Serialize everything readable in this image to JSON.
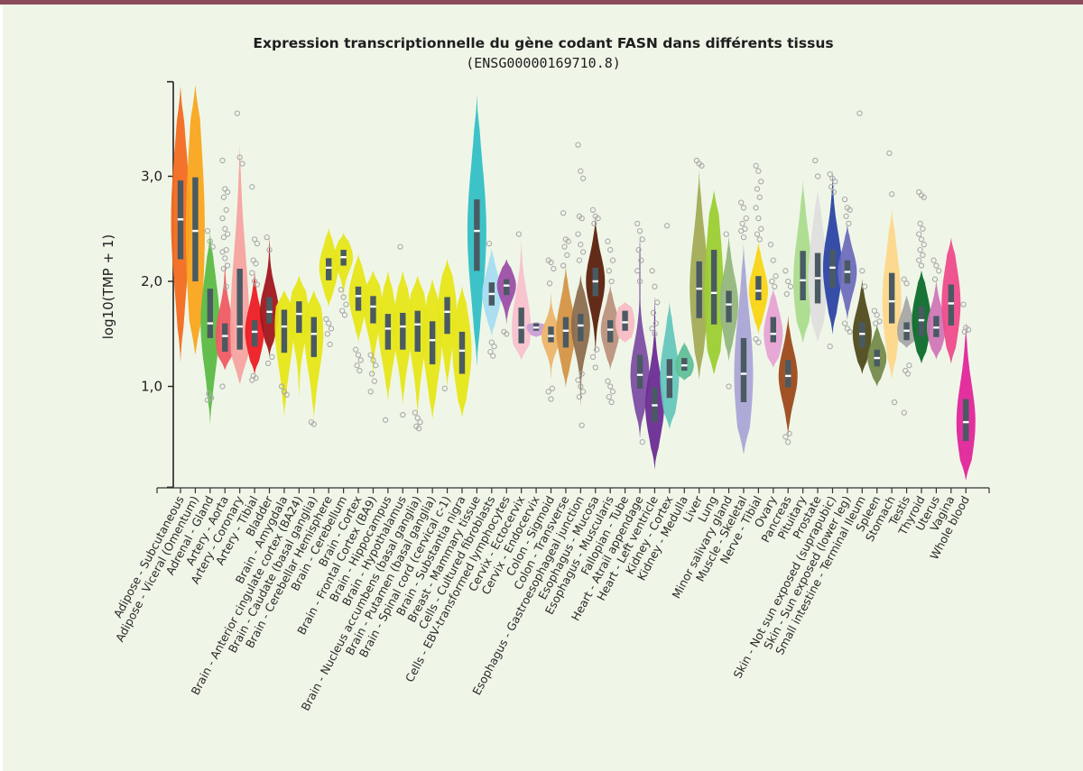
{
  "chart_data": {
    "type": "violin",
    "title": "Expression transcriptionnelle du gène codant FASN dans différents tissus",
    "subtitle": "(ENSG00000169710.8)",
    "xlabel": "",
    "ylabel": "log10(TMP + 1)",
    "ylim": [
      0.04,
      3.9
    ],
    "yticks": [
      1.0,
      2.0,
      3.0
    ],
    "ytick_labels": [
      "1,0",
      "2,0",
      "3,0"
    ],
    "grid": false,
    "legend": "none",
    "categories": [
      "Adipose - Subcutaneous",
      "Adipose - Viceral (Omentum)",
      "Adrenal - Gland",
      "Artery - Aorta",
      "Artery - Coronary",
      "Artery - Tibial",
      "Bladder",
      "Brain - Amygdala",
      "Brain - Anterior cingulate cortex (BA24)",
      "Brain - Caudate (basal ganglia)",
      "Brain - Cerebellar Hemisphere",
      "Brain - Cerebellum",
      "Brain - Cortex",
      "Brain - Frontal Cortex (BA9)",
      "Brain - Hippocampus",
      "Brain - Hypothalamus",
      "Brain - Nucleus accumbens (basal ganglia)",
      "Brain - Putamen (basal ganglia)",
      "Brain - Spinal cord (cervical c-1)",
      "Brain - Substantia nigra",
      "Breast - Mammary tissue",
      "Cells - Cultured fibroblasts",
      "Cells - EBV-transformed lymphocytes",
      "Cervix - Ectocervix",
      "Cervix - Endocervix",
      "Colon - Sigmoid",
      "Colon - Transverse",
      "Esophagus - Gastroesophageal junction",
      "Esophagus - Mucosa",
      "Esophagus - Muscularis",
      "Fallopian - Tube",
      "Heart - Atrail appendage",
      "Heart - Left ventricle",
      "Kidney - Cortex",
      "Kidney - Medulla",
      "Liver",
      "Lung",
      "Minor salivary gland",
      "Muscle - Skeletal",
      "Nerve - Tibial",
      "Ovary",
      "Pancreas",
      "Pituitary",
      "Prostate",
      "Skin - Not sun exposed (suprapubic)",
      "Skin - Sun exposed (lower leg)",
      "Small intestine - Terminal Ileum",
      "Spleen",
      "Stomach",
      "Testis",
      "Thyroid",
      "Uterus",
      "Vagina",
      "Whole blood"
    ],
    "series": [
      {
        "name": "Adipose - Subcutaneous",
        "color": "#f26b21",
        "median": 2.59,
        "q1": 2.21,
        "q3": 2.96,
        "min": 1.24,
        "max": 3.85
      },
      {
        "name": "Adipose - Viceral (Omentum)",
        "color": "#f8a51d",
        "median": 2.48,
        "q1": 2.0,
        "q3": 2.99,
        "min": 1.31,
        "max": 3.86
      },
      {
        "name": "Adrenal - Gland",
        "color": "#5bbb44",
        "median": 1.6,
        "q1": 1.46,
        "q3": 1.93,
        "min": 0.64,
        "max": 2.46
      },
      {
        "name": "Artery - Aorta",
        "color": "#ef5b64",
        "median": 1.48,
        "q1": 1.33,
        "q3": 1.6,
        "min": 1.16,
        "max": 2.19
      },
      {
        "name": "Artery - Coronary",
        "color": "#f5a3a0",
        "median": 1.57,
        "q1": 1.35,
        "q3": 2.12,
        "min": 1.03,
        "max": 3.3
      },
      {
        "name": "Artery - Tibial",
        "color": "#ec1c24",
        "median": 1.52,
        "q1": 1.38,
        "q3": 1.63,
        "min": 1.12,
        "max": 2.1
      },
      {
        "name": "Bladder",
        "color": "#a0171e",
        "median": 1.71,
        "q1": 1.6,
        "q3": 1.85,
        "min": 1.29,
        "max": 2.41
      },
      {
        "name": "Brain - Amygdala",
        "color": "#e6e619",
        "median": 1.57,
        "q1": 1.32,
        "q3": 1.73,
        "min": 0.71,
        "max": 1.91
      },
      {
        "name": "Brain - Anterior cingulate cortex (BA24)",
        "color": "#e6e619",
        "median": 1.69,
        "q1": 1.51,
        "q3": 1.81,
        "min": 0.9,
        "max": 2.05
      },
      {
        "name": "Brain - Caudate (basal ganglia)",
        "color": "#e6e619",
        "median": 1.5,
        "q1": 1.28,
        "q3": 1.66,
        "min": 0.69,
        "max": 1.91
      },
      {
        "name": "Brain - Cerebellar Hemisphere",
        "color": "#e6e619",
        "median": 2.13,
        "q1": 2.01,
        "q3": 2.22,
        "min": 1.76,
        "max": 2.51
      },
      {
        "name": "Brain - Cerebellum",
        "color": "#e6e619",
        "median": 2.23,
        "q1": 2.15,
        "q3": 2.3,
        "min": 1.85,
        "max": 2.46
      },
      {
        "name": "Brain - Cortex",
        "color": "#e6e619",
        "median": 1.86,
        "q1": 1.72,
        "q3": 1.95,
        "min": 1.42,
        "max": 2.26
      },
      {
        "name": "Brain - Frontal Cortex (BA9)",
        "color": "#e6e619",
        "median": 1.76,
        "q1": 1.6,
        "q3": 1.86,
        "min": 1.07,
        "max": 2.1
      },
      {
        "name": "Brain - Hippocampus",
        "color": "#e6e619",
        "median": 1.55,
        "q1": 1.35,
        "q3": 1.69,
        "min": 0.86,
        "max": 2.1
      },
      {
        "name": "Brain - Hypothalamus",
        "color": "#e6e619",
        "median": 1.57,
        "q1": 1.35,
        "q3": 1.7,
        "min": 0.82,
        "max": 2.1
      },
      {
        "name": "Brain - Nucleus accumbens (basal ganglia)",
        "color": "#e6e619",
        "median": 1.59,
        "q1": 1.33,
        "q3": 1.72,
        "min": 0.73,
        "max": 2.05
      },
      {
        "name": "Brain - Putamen (basal ganglia)",
        "color": "#e6e619",
        "median": 1.44,
        "q1": 1.21,
        "q3": 1.62,
        "min": 0.69,
        "max": 2.02
      },
      {
        "name": "Brain - Spinal cord (cervical c-1)",
        "color": "#e6e619",
        "median": 1.71,
        "q1": 1.5,
        "q3": 1.85,
        "min": 1.0,
        "max": 2.21
      },
      {
        "name": "Brain - Substantia nigra",
        "color": "#e6e619",
        "median": 1.34,
        "q1": 1.12,
        "q3": 1.52,
        "min": 0.71,
        "max": 1.95
      },
      {
        "name": "Breast - Mammary tissue",
        "color": "#33bfc5",
        "median": 2.48,
        "q1": 2.1,
        "q3": 2.78,
        "min": 1.2,
        "max": 3.76
      },
      {
        "name": "Cells - Cultured fibroblasts",
        "color": "#a6dcf1",
        "median": 1.88,
        "q1": 1.77,
        "q3": 1.99,
        "min": 1.48,
        "max": 2.32
      },
      {
        "name": "Cells - EBV-transformed lymphocytes",
        "color": "#9c4fa8",
        "median": 1.96,
        "q1": 1.87,
        "q3": 2.02,
        "min": 1.59,
        "max": 2.21
      },
      {
        "name": "Cervix - Ectocervix",
        "color": "#f7c1cf",
        "median": 1.56,
        "q1": 1.41,
        "q3": 1.75,
        "min": 1.26,
        "max": 2.4
      },
      {
        "name": "Cervix - Endocervix",
        "color": "#c99ed6",
        "median": 1.56,
        "q1": 1.53,
        "q3": 1.6,
        "min": 1.47,
        "max": 1.61
      },
      {
        "name": "Colon - Sigmoid",
        "color": "#ecb46a",
        "median": 1.48,
        "q1": 1.42,
        "q3": 1.57,
        "min": 1.07,
        "max": 1.89
      },
      {
        "name": "Colon - Transverse",
        "color": "#d49445",
        "median": 1.53,
        "q1": 1.37,
        "q3": 1.66,
        "min": 0.99,
        "max": 2.15
      },
      {
        "name": "Esophagus - Gastroesophageal junction",
        "color": "#8c6d4f",
        "median": 1.58,
        "q1": 1.43,
        "q3": 1.69,
        "min": 0.82,
        "max": 2.06
      },
      {
        "name": "Esophagus - Mucosa",
        "color": "#5a210e",
        "median": 2.0,
        "q1": 1.86,
        "q3": 2.13,
        "min": 1.29,
        "max": 2.62
      },
      {
        "name": "Esophagus - Muscularis",
        "color": "#bb927d",
        "median": 1.54,
        "q1": 1.42,
        "q3": 1.63,
        "min": 1.16,
        "max": 1.97
      },
      {
        "name": "Fallopian - Tube",
        "color": "#f8bcc4",
        "median": 1.61,
        "q1": 1.53,
        "q3": 1.72,
        "min": 1.42,
        "max": 1.8
      },
      {
        "name": "Heart - Atrail appendage",
        "color": "#7d4ea3",
        "median": 1.11,
        "q1": 0.98,
        "q3": 1.3,
        "min": 0.51,
        "max": 2.45
      },
      {
        "name": "Heart - Left ventricle",
        "color": "#6a2c93",
        "median": 0.82,
        "q1": 0.66,
        "q3": 0.99,
        "min": 0.21,
        "max": 1.85
      },
      {
        "name": "Kidney - Cortex",
        "color": "#66c7bd",
        "median": 1.09,
        "q1": 0.89,
        "q3": 1.26,
        "min": 0.6,
        "max": 1.8
      },
      {
        "name": "Kidney - Medulla",
        "color": "#5fbf99",
        "median": 1.2,
        "q1": 1.15,
        "q3": 1.27,
        "min": 1.06,
        "max": 1.42
      },
      {
        "name": "Liver",
        "color": "#a3ac57",
        "median": 1.93,
        "q1": 1.65,
        "q3": 2.19,
        "min": 1.07,
        "max": 3.06
      },
      {
        "name": "Lung",
        "color": "#9bcd32",
        "median": 1.89,
        "q1": 1.59,
        "q3": 2.3,
        "min": 1.12,
        "max": 2.86
      },
      {
        "name": "Minor salivary gland",
        "color": "#93b77d",
        "median": 1.78,
        "q1": 1.61,
        "q3": 1.91,
        "min": 1.24,
        "max": 2.45
      },
      {
        "name": "Muscle - Skeletal",
        "color": "#aaa5d6",
        "median": 1.12,
        "q1": 0.85,
        "q3": 1.46,
        "min": 0.36,
        "max": 2.36
      },
      {
        "name": "Nerve - Tibial",
        "color": "#f9d414",
        "median": 1.91,
        "q1": 1.82,
        "q3": 2.05,
        "min": 1.5,
        "max": 2.38
      },
      {
        "name": "Ovary",
        "color": "#e6a3d4",
        "median": 1.5,
        "q1": 1.42,
        "q3": 1.66,
        "min": 1.18,
        "max": 1.93
      },
      {
        "name": "Pancreas",
        "color": "#9c4a1c",
        "median": 1.1,
        "q1": 0.99,
        "q3": 1.25,
        "min": 0.52,
        "max": 1.67
      },
      {
        "name": "Pituitary",
        "color": "#abdc8e",
        "median": 2.01,
        "q1": 1.82,
        "q3": 2.29,
        "min": 1.42,
        "max": 2.96
      },
      {
        "name": "Prostate",
        "color": "#dedede",
        "median": 2.03,
        "q1": 1.79,
        "q3": 2.27,
        "min": 1.42,
        "max": 2.87
      },
      {
        "name": "Skin - Not sun exposed (suprapubic)",
        "color": "#2c44a5",
        "median": 2.13,
        "q1": 1.94,
        "q3": 2.3,
        "min": 1.5,
        "max": 3.05
      },
      {
        "name": "Skin - Sun exposed (lower leg)",
        "color": "#6d6dbd",
        "median": 2.09,
        "q1": 1.98,
        "q3": 2.2,
        "min": 1.63,
        "max": 2.55
      },
      {
        "name": "Small intestine - Terminal Ileum",
        "color": "#4f4b1e",
        "median": 1.5,
        "q1": 1.37,
        "q3": 1.61,
        "min": 1.12,
        "max": 2.02
      },
      {
        "name": "Spleen",
        "color": "#758a4b",
        "median": 1.27,
        "q1": 1.19,
        "q3": 1.35,
        "min": 1.0,
        "max": 1.59
      },
      {
        "name": "Stomach",
        "color": "#fdd78a",
        "median": 1.81,
        "q1": 1.6,
        "q3": 2.08,
        "min": 1.07,
        "max": 2.69
      },
      {
        "name": "Testis",
        "color": "#a6a6a6",
        "median": 1.53,
        "q1": 1.44,
        "q3": 1.61,
        "min": 1.37,
        "max": 1.87
      },
      {
        "name": "Thyroid",
        "color": "#0d6b2c",
        "median": 1.63,
        "q1": 1.48,
        "q3": 1.76,
        "min": 1.22,
        "max": 2.1
      },
      {
        "name": "Uterus",
        "color": "#cf77b7",
        "median": 1.56,
        "q1": 1.47,
        "q3": 1.67,
        "min": 1.26,
        "max": 2.02
      },
      {
        "name": "Vagina",
        "color": "#ee4c8c",
        "median": 1.79,
        "q1": 1.58,
        "q3": 1.97,
        "min": 1.22,
        "max": 2.41
      },
      {
        "name": "Whole blood",
        "color": "#e2259b",
        "median": 0.66,
        "q1": 0.48,
        "q3": 0.88,
        "min": 0.11,
        "max": 1.61
      }
    ],
    "outliers": {
      "Adrenal - Gland": [
        2.48,
        2.38,
        2.33,
        0.93,
        0.89,
        0.87
      ],
      "Artery - Aorta": [
        3.15,
        2.88,
        2.85,
        2.8,
        2.68,
        2.6,
        2.5,
        2.45,
        2.42,
        2.3,
        2.28,
        2.22,
        2.15,
        2.12,
        1.95,
        1.0
      ],
      "Artery - Coronary": [
        3.6,
        3.18,
        3.12
      ],
      "Artery - Tibial": [
        2.9,
        2.4,
        2.36,
        2.2,
        2.17,
        2.08,
        2.0,
        1.97,
        1.1,
        1.08,
        1.06
      ],
      "Bladder": [
        2.42,
        2.3,
        1.28,
        1.22
      ],
      "Brain - Caudate (basal ganglia)": [
        0.66,
        0.64
      ],
      "Brain - Cerebellar Hemisphere": [
        1.64,
        1.6,
        1.55,
        1.5,
        1.4
      ],
      "Brain - Cerebellum": [
        1.92,
        1.85,
        1.78,
        1.72,
        1.68
      ],
      "Brain - Amygdala": [
        1.0,
        0.95,
        0.92
      ],
      "Brain - Cortex": [
        1.35,
        1.3,
        1.25,
        1.2,
        1.15
      ],
      "Brain - Frontal Cortex (BA9)": [
        1.3,
        1.25,
        1.2,
        1.12,
        1.05,
        0.95
      ],
      "Brain - Hippocampus": [
        0.68
      ],
      "Brain - Hypothalamus": [
        2.33,
        0.73
      ],
      "Brain - Nucleus accumbens (basal ganglia)": [
        0.75,
        0.7,
        0.66,
        0.62,
        0.6
      ],
      "Brain - Spinal cord (cervical c-1)": [
        0.98
      ],
      "Cells - Cultured fibroblasts": [
        2.36,
        1.42,
        1.38,
        1.33,
        1.29
      ],
      "Cells - EBV-transformed lymphocytes": [
        1.52,
        1.5
      ],
      "Cervix - Ectocervix": [
        2.45
      ],
      "Colon - Sigmoid": [
        2.2,
        2.18,
        2.12,
        1.98,
        0.98,
        0.95,
        0.88
      ],
      "Colon - Transverse": [
        2.65,
        2.4,
        2.38,
        2.33,
        2.25,
        2.15
      ],
      "Esophagus - Gastroesophageal junction": [
        3.3,
        3.05,
        2.98,
        2.62,
        2.6,
        2.45,
        2.35,
        2.28,
        2.2,
        1.12,
        1.06,
        1.0,
        0.95,
        0.9,
        0.63
      ],
      "Esophagus - Mucosa": [
        2.68,
        2.62,
        2.6,
        2.55,
        1.35,
        1.28,
        1.18
      ],
      "Esophagus - Muscularis": [
        2.38,
        2.3,
        2.2,
        2.1,
        2.0,
        1.05,
        1.0,
        0.95,
        0.9,
        0.85
      ],
      "Heart - Atrail appendage": [
        2.55,
        2.48,
        2.4,
        2.3,
        2.2,
        2.1,
        2.0,
        0.47
      ],
      "Heart - Left ventricle": [
        2.1,
        1.95,
        1.8,
        1.7,
        1.6,
        1.55,
        1.5
      ],
      "Kidney - Cortex": [
        2.53
      ],
      "Liver": [
        3.15,
        3.12,
        3.1
      ],
      "Minor salivary gland": [
        2.45,
        1.0
      ],
      "Muscle - Skeletal": [
        2.75,
        2.7,
        2.6,
        2.55,
        2.5,
        2.48,
        2.42
      ],
      "Nerve - Tibial": [
        3.1,
        3.05,
        2.95,
        2.88,
        2.8,
        2.7,
        2.6,
        2.5,
        2.45,
        2.4,
        1.45,
        1.42
      ],
      "Ovary": [
        2.35,
        2.2,
        2.05,
        2.0,
        1.95
      ],
      "Pancreas": [
        2.1,
        2.0,
        1.95,
        1.88,
        0.55,
        0.52,
        0.47
      ],
      "Prostate": [
        3.15,
        3.0
      ],
      "Skin - Not sun exposed (suprapubic)": [
        3.02,
        2.98,
        2.95,
        2.9,
        2.85,
        1.38
      ],
      "Skin - Sun exposed (lower leg)": [
        2.78,
        2.7,
        2.68,
        2.62,
        2.55,
        1.6,
        1.55,
        1.52
      ],
      "Small intestine - Terminal Ileum": [
        3.6,
        2.1,
        1.95
      ],
      "Spleen": [
        1.72,
        1.68,
        1.62,
        1.6
      ],
      "Stomach": [
        3.22,
        2.83,
        0.85
      ],
      "Testis": [
        2.02,
        1.98,
        1.2,
        1.15,
        1.12,
        0.75
      ],
      "Thyroid": [
        2.85,
        2.82,
        2.8,
        2.55,
        2.5,
        2.45,
        2.4,
        2.35,
        2.3,
        2.25,
        2.2,
        2.15
      ],
      "Uterus": [
        2.2,
        2.15,
        2.1,
        2.02
      ],
      "Whole blood": [
        1.78,
        1.56,
        1.54,
        1.52
      ]
    }
  }
}
